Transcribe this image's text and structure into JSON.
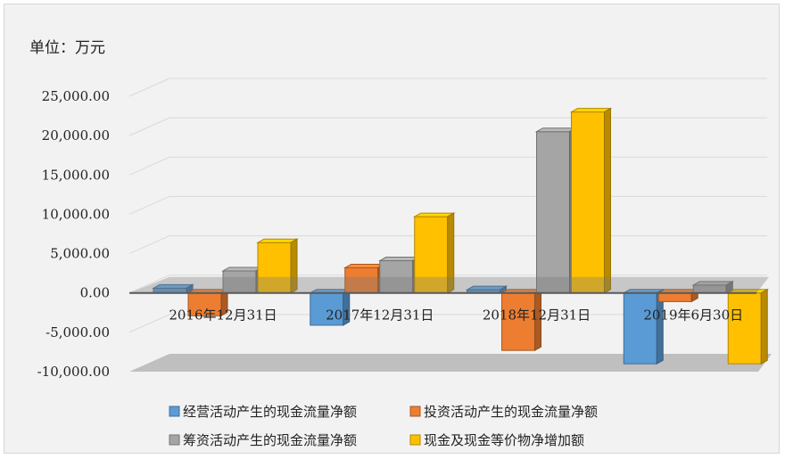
{
  "chart_data": {
    "type": "bar",
    "unit_label": "单位：万元",
    "categories": [
      "2016年12月31日",
      "2017年12月31日",
      "2018年12月31日",
      "2019年6月30日"
    ],
    "series": [
      {
        "name": "经营活动产生的现金流量净额",
        "color": "#5b9bd5",
        "values": [
          600,
          -4100,
          400,
          -9000
        ]
      },
      {
        "name": "投资活动产生的现金流量净额",
        "color": "#ed7d31",
        "values": [
          -2900,
          3200,
          -7300,
          -1100
        ]
      },
      {
        "name": "筹资活动产生的现金流量净额",
        "color": "#a5a5a5",
        "values": [
          2800,
          4100,
          20500,
          1000
        ]
      },
      {
        "name": "现金及现金等价物净增加额",
        "color": "#ffc000",
        "values": [
          6400,
          9700,
          23000,
          -9000
        ]
      }
    ],
    "yticks": [
      "25,000.00",
      "20,000.00",
      "15,000.00",
      "10,000.00",
      "5,000.00",
      "0.00",
      "-5,000.00",
      "-10,000.00"
    ],
    "ylim": [
      -10000,
      25000
    ],
    "grid": true,
    "legend_position": "bottom"
  }
}
